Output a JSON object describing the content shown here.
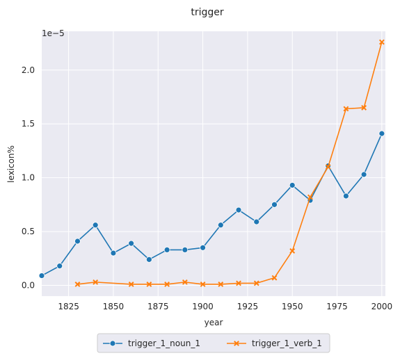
{
  "chart_data": {
    "type": "line",
    "title": "trigger",
    "xlabel": "year",
    "ylabel": "lexicon%",
    "offset_text": "1e−5",
    "xlim": [
      1810,
      2002
    ],
    "ylim": [
      -0.1,
      2.36
    ],
    "x_ticks": [
      1825,
      1850,
      1875,
      1900,
      1925,
      1950,
      1975,
      2000
    ],
    "y_ticks": [
      0.0,
      0.5,
      1.0,
      1.5,
      2.0
    ],
    "y_tick_labels": [
      "0.0",
      "0.5",
      "1.0",
      "1.5",
      "2.0"
    ],
    "grid": true,
    "legend_position": "bottom-center",
    "series": [
      {
        "name": "trigger_1_noun_1",
        "color": "#1f77b4",
        "marker": "circle",
        "x": [
          1810,
          1820,
          1830,
          1840,
          1850,
          1860,
          1870,
          1880,
          1890,
          1900,
          1910,
          1920,
          1930,
          1940,
          1950,
          1960,
          1970,
          1980,
          1990,
          2000
        ],
        "y": [
          0.09,
          0.18,
          0.41,
          0.56,
          0.3,
          0.39,
          0.24,
          0.33,
          0.33,
          0.35,
          0.56,
          0.7,
          0.59,
          0.75,
          0.93,
          0.79,
          1.11,
          0.83,
          1.03,
          1.41
        ]
      },
      {
        "name": "trigger_1_verb_1",
        "color": "#ff7f0e",
        "marker": "x",
        "x": [
          1830,
          1840,
          1860,
          1870,
          1880,
          1890,
          1900,
          1910,
          1920,
          1930,
          1940,
          1950,
          1960,
          1970,
          1980,
          1990,
          2000
        ],
        "y": [
          0.01,
          0.03,
          0.01,
          0.01,
          0.01,
          0.03,
          0.01,
          0.01,
          0.02,
          0.02,
          0.07,
          0.32,
          0.82,
          1.1,
          1.64,
          1.65,
          2.26
        ]
      }
    ]
  }
}
